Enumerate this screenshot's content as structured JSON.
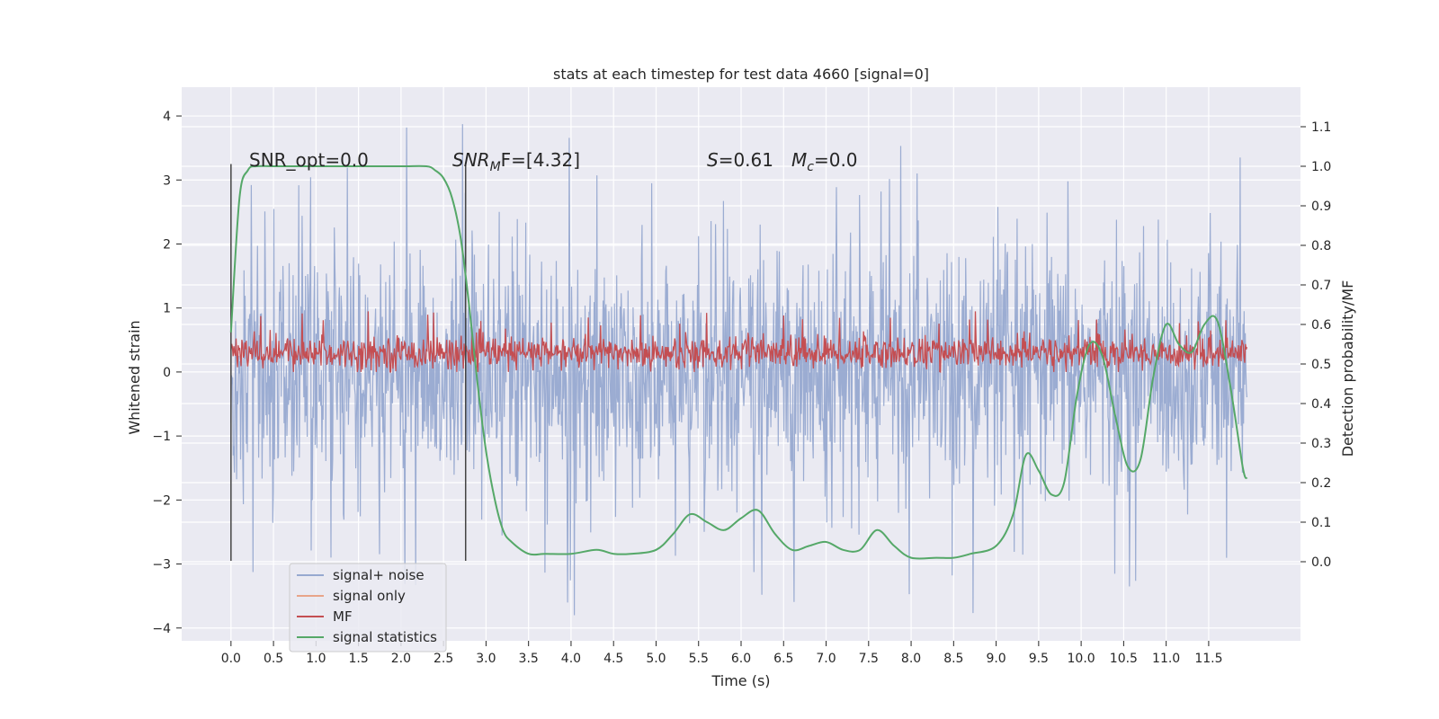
{
  "chart_data": {
    "type": "line",
    "title": "stats at each timestep for test data 4660 [signal=0]",
    "xlabel": "Time (s)",
    "ylabel_left": "Whitened strain",
    "ylabel_right": "Detection probability/MF",
    "xlim": [
      -0.58,
      12.58
    ],
    "ylim_left": [
      -4.2,
      4.45
    ],
    "ylim_right": [
      -0.2,
      1.2
    ],
    "x_ticks": [
      "0.0",
      "0.5",
      "1.0",
      "1.5",
      "2.0",
      "2.5",
      "3.0",
      "3.5",
      "4.0",
      "4.5",
      "5.0",
      "5.5",
      "6.0",
      "6.5",
      "7.0",
      "7.5",
      "8.0",
      "8.5",
      "9.0",
      "9.5",
      "10.0",
      "10.5",
      "11.0",
      "11.5"
    ],
    "y_ticks_left": [
      "−4",
      "−3",
      "−2",
      "−1",
      "0",
      "1",
      "2",
      "3",
      "4"
    ],
    "y_ticks_right": [
      "0.0",
      "0.1",
      "0.2",
      "0.3",
      "0.4",
      "0.5",
      "0.6",
      "0.7",
      "0.8",
      "0.9",
      "1.0",
      "1.1"
    ],
    "grid": true,
    "legend_position": "lower-left",
    "annotations": {
      "snr_opt": "SNR_opt=0.0",
      "snr_mf_italic": "SNR",
      "snr_mf_sub": "M",
      "snr_mf_rest": "F=[4.32]",
      "s_italic": "S",
      "s_rest": "=0.61",
      "mc_italic": "M",
      "mc_sub": "c",
      "mc_rest": "=0.0"
    },
    "vlines": [
      0.0,
      2.76
    ],
    "series": [
      {
        "name": "signal+ noise",
        "color": "#97a9d0",
        "style": "noise",
        "x_range": [
          0,
          11.95
        ],
        "envelope": {
          "upper_typical": 2.2,
          "lower_typical": -2.5,
          "upper_peak": 4.1,
          "lower_peak": -3.8
        }
      },
      {
        "name": "signal only",
        "color": "#e8a489",
        "values": []
      },
      {
        "name": "MF",
        "color": "#c44e52",
        "style": "noise",
        "x_range": [
          0,
          11.95
        ],
        "envelope": {
          "base": 0.0,
          "upper_typical": 0.55,
          "upper_peak": 0.95
        }
      },
      {
        "name": "signal statistics",
        "color": "#55a868",
        "axis": "right",
        "x": [
          0.0,
          0.1,
          0.2,
          0.3,
          0.5,
          1.0,
          1.5,
          2.0,
          2.3,
          2.4,
          2.5,
          2.6,
          2.7,
          2.8,
          2.9,
          3.0,
          3.1,
          3.2,
          3.3,
          3.5,
          3.7,
          4.0,
          4.3,
          4.5,
          4.7,
          5.0,
          5.2,
          5.4,
          5.6,
          5.8,
          6.0,
          6.2,
          6.4,
          6.6,
          6.8,
          7.0,
          7.2,
          7.4,
          7.6,
          7.8,
          8.0,
          8.3,
          8.5,
          8.7,
          9.0,
          9.2,
          9.35,
          9.5,
          9.65,
          9.8,
          9.95,
          10.1,
          10.25,
          10.4,
          10.55,
          10.7,
          10.85,
          11.0,
          11.15,
          11.3,
          11.45,
          11.6,
          11.75,
          11.9,
          11.95
        ],
        "values": [
          0.58,
          0.92,
          0.99,
          1.0,
          1.0,
          1.0,
          1.0,
          1.0,
          1.0,
          0.99,
          0.97,
          0.92,
          0.82,
          0.65,
          0.45,
          0.28,
          0.16,
          0.08,
          0.05,
          0.02,
          0.02,
          0.02,
          0.03,
          0.02,
          0.02,
          0.03,
          0.07,
          0.12,
          0.1,
          0.08,
          0.11,
          0.13,
          0.07,
          0.03,
          0.04,
          0.05,
          0.03,
          0.03,
          0.08,
          0.04,
          0.01,
          0.01,
          0.01,
          0.02,
          0.04,
          0.12,
          0.27,
          0.23,
          0.17,
          0.2,
          0.42,
          0.55,
          0.52,
          0.37,
          0.24,
          0.26,
          0.47,
          0.6,
          0.55,
          0.53,
          0.6,
          0.61,
          0.45,
          0.24,
          0.21
        ]
      }
    ]
  }
}
